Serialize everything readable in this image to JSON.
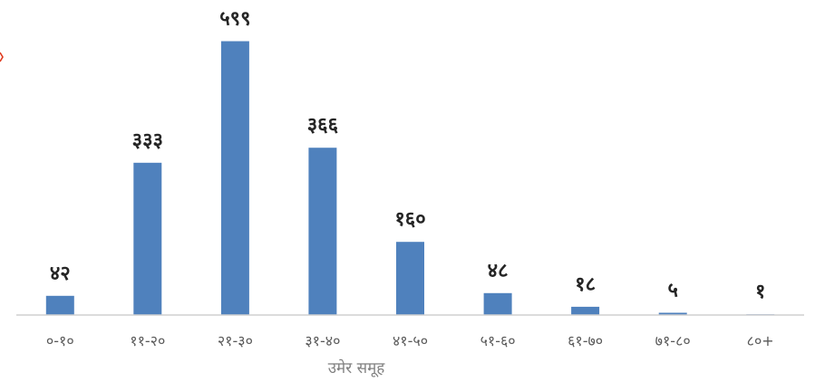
{
  "chart_data": {
    "type": "bar",
    "title": "",
    "xlabel": "उमेर समूह",
    "ylabel": "",
    "categories": [
      "०-१०",
      "११-२०",
      "२१-३०",
      "३१-४०",
      "४१-५०",
      "५१-६०",
      "६१-७०",
      "७१-८०",
      "८०+"
    ],
    "values": [
      42,
      333,
      599,
      366,
      160,
      48,
      18,
      5,
      1
    ],
    "value_labels": [
      "४२",
      "३३३",
      "५९९",
      "३६६",
      "१६०",
      "४८",
      "१८",
      "५",
      "१"
    ],
    "ylim": [
      0,
      600
    ],
    "grid": false,
    "legend": "none",
    "bar_color": "#4f81bd"
  }
}
